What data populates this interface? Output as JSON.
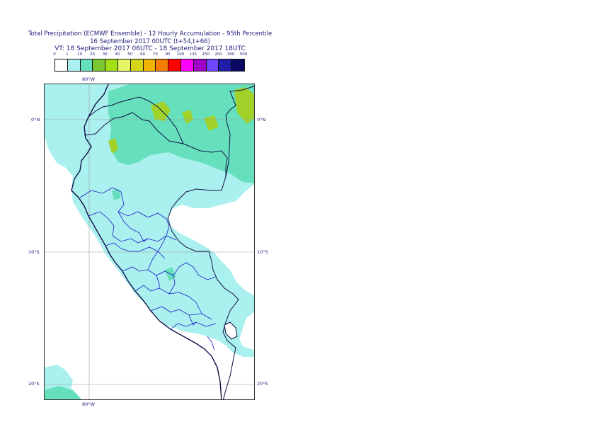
{
  "title": {
    "line1": "Total Precipitation (ECMWF Ensemble) - 12 Hourly Accumulation - 95th Percentile",
    "line2": "16 September 2017 00UTC (t+54,t+66)",
    "line3": "VT: 18 September 2017 06UTC - 18 September 2017 18UTC"
  },
  "legend": {
    "thresholds": [
      "0",
      "1",
      "10",
      "20",
      "30",
      "40",
      "50",
      "60",
      "70",
      "80",
      "100",
      "125",
      "150",
      "200",
      "300",
      "500"
    ],
    "colors": [
      "#ffffff",
      "#aaf0ee",
      "#66e0bc",
      "#7cc832",
      "#a0e014",
      "#e6f566",
      "#d4d418",
      "#f0b400",
      "#f57d00",
      "#ff0000",
      "#ff00ff",
      "#a000c8",
      "#6e46ff",
      "#1e1eaa",
      "#0a0a64"
    ]
  },
  "axes": {
    "lon_top": "80°W",
    "lon_bottom": "80°W",
    "lat_left": [
      "0°N",
      "10°S",
      "20°S"
    ],
    "lat_right": [
      "0°N",
      "10°S",
      "20°S"
    ]
  },
  "colors": {
    "light_cyan": "#aaf0ee",
    "teal": "#66e0bc",
    "green": "#a0d22a",
    "coast": "#101048",
    "internal_border": "#1a1acc",
    "grid": "#9a9a9a"
  }
}
